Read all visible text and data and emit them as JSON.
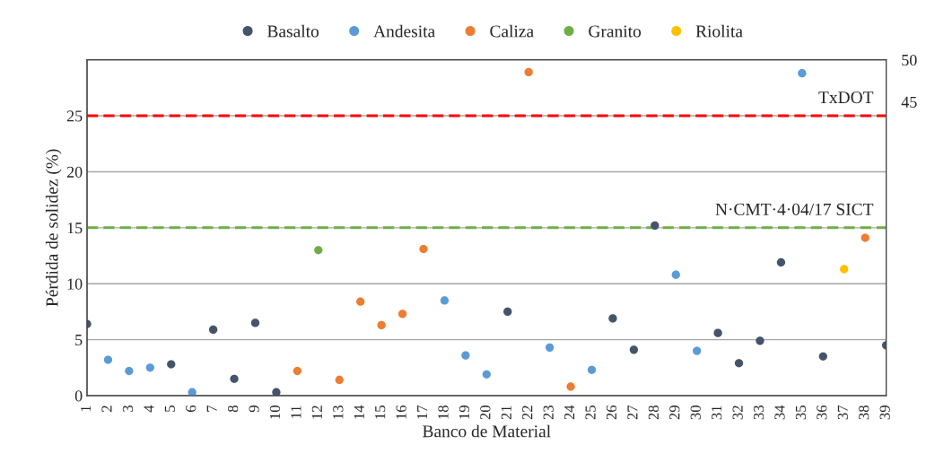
{
  "chart_data": {
    "type": "scatter",
    "categories": [
      "1",
      "2",
      "3",
      "4",
      "5",
      "6",
      "7",
      "8",
      "9",
      "10",
      "11",
      "12",
      "13",
      "14",
      "15",
      "16",
      "17",
      "18",
      "19",
      "20",
      "21",
      "22",
      "23",
      "24",
      "25",
      "26",
      "27",
      "28",
      "29",
      "30",
      "31",
      "32",
      "33",
      "34",
      "35",
      "36",
      "37",
      "38",
      "39"
    ],
    "xlabel": "Banco de Material",
    "ylabel": "Pérdida de solidez (%)",
    "ylim": [
      0,
      30
    ],
    "yticks": [
      0,
      5,
      10,
      15,
      20,
      25
    ],
    "y2lim": [
      10,
      50
    ],
    "y2ticks": [
      45,
      50
    ],
    "grid": "y",
    "legend": "top",
    "marker": "circle",
    "ref_lines": [
      {
        "axis": "y",
        "value": 25,
        "label": "TxDOT",
        "color": "#ff0000",
        "line_style": "dashed"
      },
      {
        "axis": "y",
        "value": 15,
        "label": "N·CMT·4·04/17 SICT",
        "color": "#70ad47",
        "line_style": "dashed"
      }
    ],
    "series": [
      {
        "name": "Basalto",
        "color": "#44546a",
        "values": [
          6.4,
          null,
          null,
          null,
          2.8,
          null,
          5.9,
          1.5,
          6.5,
          0.3,
          null,
          null,
          null,
          null,
          null,
          null,
          null,
          null,
          null,
          null,
          7.5,
          null,
          null,
          null,
          null,
          6.9,
          4.1,
          15.2,
          null,
          null,
          5.6,
          2.9,
          4.9,
          11.9,
          null,
          3.5,
          null,
          null,
          4.5
        ]
      },
      {
        "name": "Andesita",
        "color": "#5b9bd5",
        "values": [
          null,
          3.2,
          2.2,
          2.5,
          null,
          0.3,
          null,
          null,
          null,
          null,
          null,
          null,
          null,
          null,
          null,
          null,
          null,
          8.5,
          3.6,
          1.9,
          null,
          null,
          4.3,
          null,
          2.3,
          null,
          null,
          null,
          10.8,
          4.0,
          null,
          null,
          null,
          null,
          28.8,
          null,
          null,
          null,
          null
        ]
      },
      {
        "name": "Caliza",
        "color": "#ed7d31",
        "values": [
          null,
          null,
          null,
          null,
          null,
          null,
          null,
          null,
          null,
          null,
          2.2,
          null,
          1.4,
          8.4,
          6.3,
          7.3,
          13.1,
          null,
          null,
          null,
          null,
          28.9,
          null,
          0.8,
          null,
          null,
          null,
          null,
          null,
          null,
          null,
          null,
          null,
          null,
          null,
          null,
          null,
          14.1,
          null
        ]
      },
      {
        "name": "Granito",
        "color": "#70ad47",
        "values": [
          null,
          null,
          null,
          null,
          null,
          null,
          null,
          null,
          null,
          null,
          null,
          13.0,
          null,
          null,
          null,
          null,
          null,
          null,
          null,
          null,
          null,
          null,
          null,
          null,
          null,
          null,
          null,
          null,
          null,
          null,
          null,
          null,
          null,
          null,
          null,
          null,
          null,
          null,
          null
        ]
      },
      {
        "name": "Riolita",
        "color": "#ffc000",
        "values": [
          null,
          null,
          null,
          null,
          null,
          null,
          null,
          null,
          null,
          null,
          null,
          null,
          null,
          null,
          null,
          null,
          null,
          null,
          null,
          null,
          null,
          null,
          null,
          null,
          null,
          null,
          null,
          null,
          null,
          null,
          null,
          null,
          null,
          null,
          null,
          null,
          11.3,
          null,
          null
        ]
      }
    ]
  }
}
